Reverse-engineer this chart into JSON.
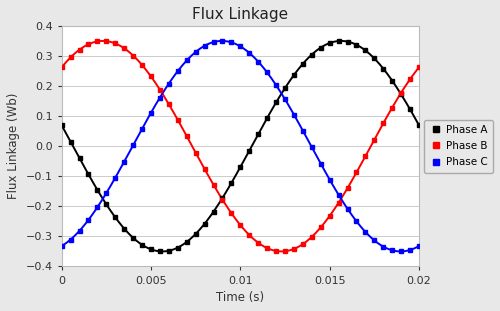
{
  "title": "Flux Linkage",
  "xlabel": "Time (s)",
  "ylabel": "Flux Linkage (Wb)",
  "xlim": [
    0,
    0.02
  ],
  "ylim": [
    -0.4,
    0.4
  ],
  "frequency": 50,
  "amplitude": 0.35,
  "n_points": 41,
  "phi0": 2.9416,
  "colors": {
    "Phase A": "#000000",
    "Phase B": "#ff0000",
    "Phase C": "#0000ff"
  },
  "plot_bg": "#ffffff",
  "fig_bg": "#e8e8e8",
  "grid_color": "#cccccc",
  "legend_labels": [
    "Phase A",
    "Phase B",
    "Phase C"
  ],
  "marker": "s",
  "marker_size": 3.0,
  "linewidth": 1.4,
  "title_fontsize": 11,
  "label_fontsize": 8.5,
  "tick_fontsize": 8,
  "legend_fontsize": 7.5
}
